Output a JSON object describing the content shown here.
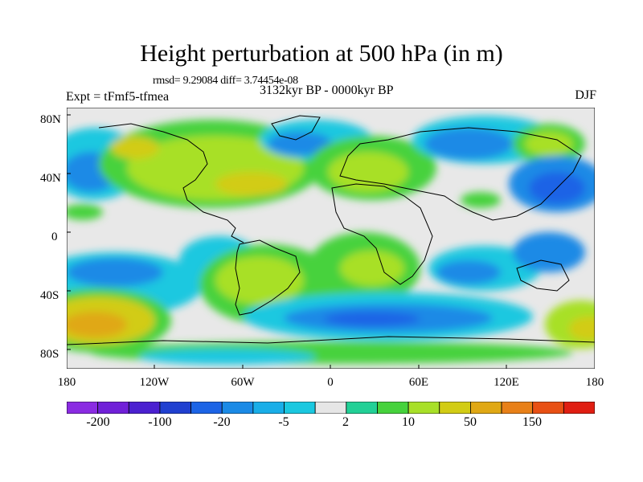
{
  "title": "Height perturbation at 500 hPa (in m)",
  "stats": "rmsd= 9.29084 diff= 3.74454e-08",
  "expt_label": "Expt = tFmf5-tfmea",
  "period_label": "3132kyr BP - 0000kyr BP",
  "season": "DJF",
  "lat_labels": [
    "80N",
    "40N",
    "0",
    "40S",
    "80S"
  ],
  "lon_labels": [
    "180",
    "120W",
    "60W",
    "0",
    "60E",
    "120E",
    "180"
  ],
  "colorbar": {
    "colors": [
      "#8a2be2",
      "#7020d8",
      "#4b20d0",
      "#2040d0",
      "#1c64e6",
      "#1a8ae6",
      "#19aee8",
      "#1ac8e0",
      "#e6e6e6",
      "#22d096",
      "#46d23c",
      "#a8e028",
      "#d2cc14",
      "#e0a814",
      "#e88018",
      "#e85014",
      "#e01e12"
    ],
    "labels": [
      "-200",
      "-100",
      "-20",
      "-5",
      "2",
      "10",
      "50",
      "150"
    ]
  },
  "map_image": "global contour map of 500 hPa height perturbation over world coastlines"
}
